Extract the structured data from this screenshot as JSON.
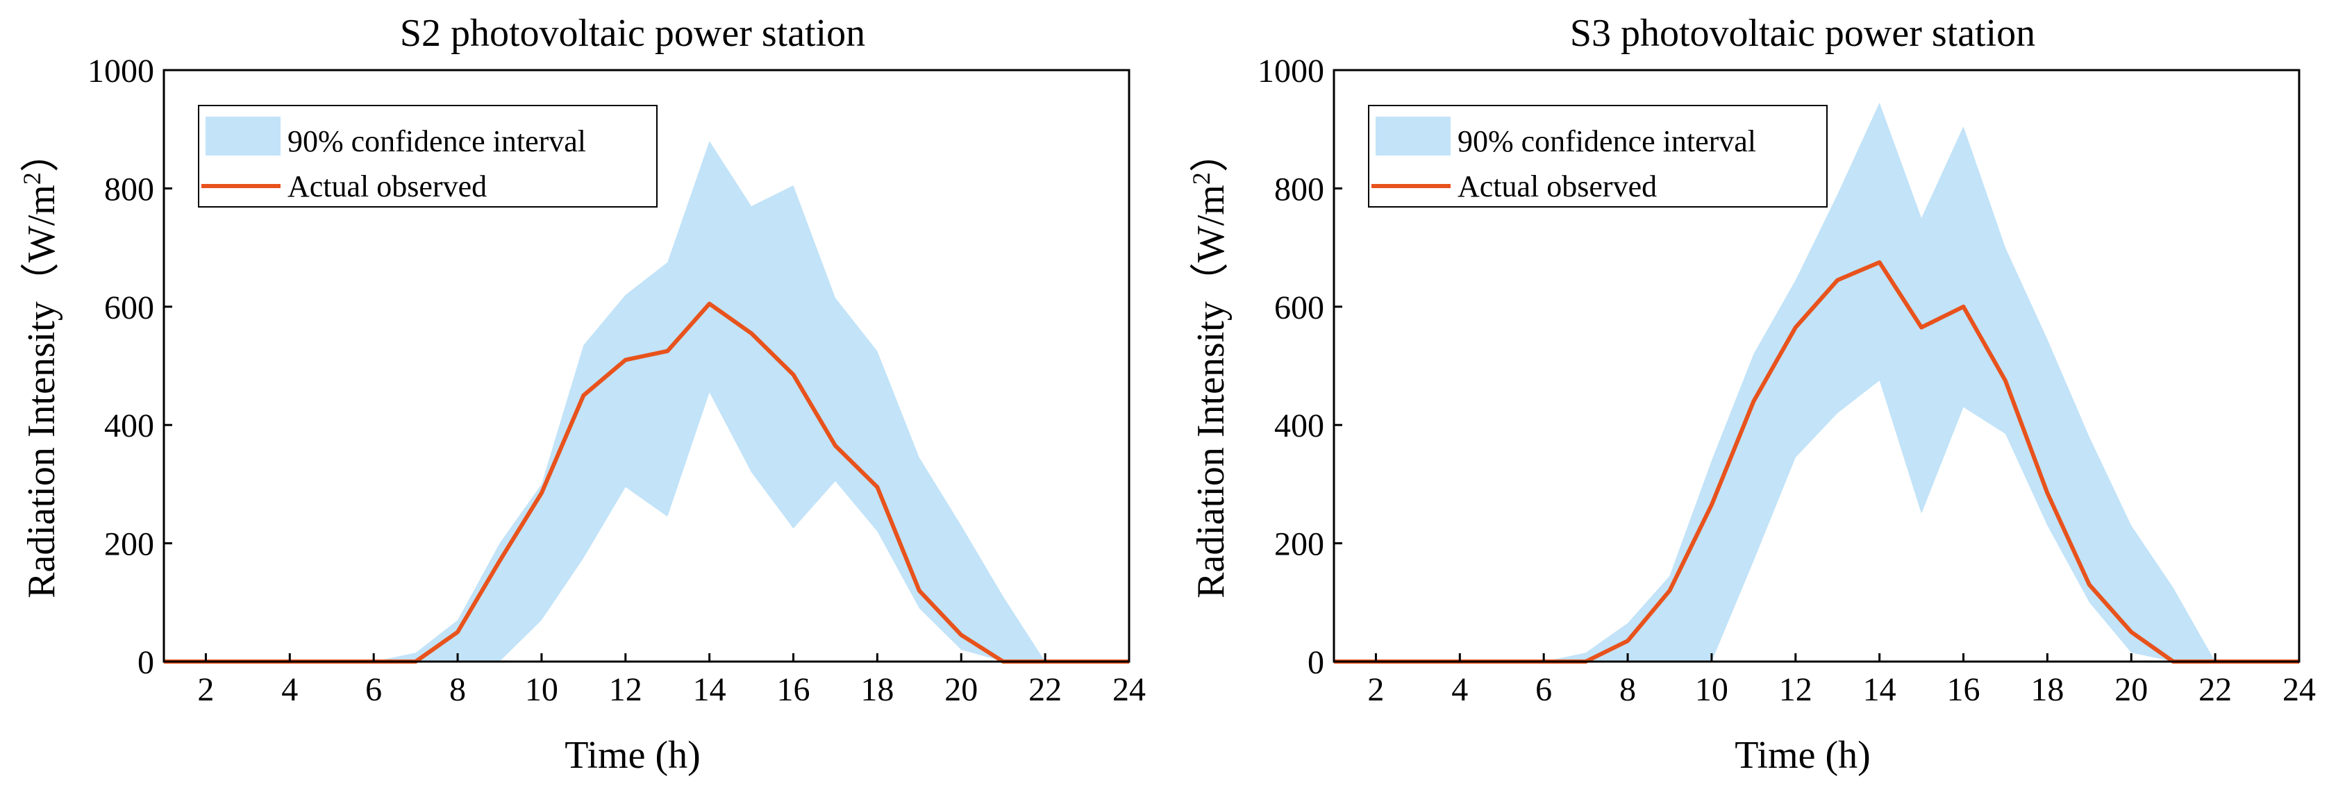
{
  "chart_data": [
    {
      "type": "area",
      "title": "S2 photovoltaic power station",
      "xlabel": "Time (h)",
      "ylabel": "Radiation Intensity（W/m²）",
      "xlim": [
        1,
        24
      ],
      "ylim": [
        0,
        1000
      ],
      "xticks": [
        2,
        4,
        6,
        8,
        10,
        12,
        14,
        16,
        18,
        20,
        22,
        24
      ],
      "yticks": [
        0,
        200,
        400,
        600,
        800,
        1000
      ],
      "legend_position": "top-left",
      "x": [
        1,
        2,
        3,
        4,
        5,
        6,
        7,
        8,
        9,
        10,
        11,
        12,
        13,
        14,
        15,
        16,
        17,
        18,
        19,
        20,
        21,
        22,
        23,
        24
      ],
      "series": [
        {
          "name": "90% confidence interval",
          "kind": "band",
          "lower": [
            0,
            0,
            0,
            0,
            0,
            0,
            0,
            0,
            0,
            70,
            175,
            295,
            245,
            455,
            320,
            225,
            305,
            220,
            90,
            20,
            0,
            0,
            0,
            0
          ],
          "upper": [
            0,
            0,
            0,
            0,
            0,
            0,
            15,
            70,
            200,
            300,
            535,
            620,
            675,
            880,
            770,
            805,
            615,
            525,
            345,
            230,
            110,
            0,
            0,
            0
          ]
        },
        {
          "name": "Actual observed",
          "kind": "line",
          "values": [
            0,
            0,
            0,
            0,
            0,
            0,
            0,
            50,
            170,
            285,
            450,
            510,
            525,
            605,
            555,
            485,
            365,
            295,
            120,
            45,
            0,
            0,
            0,
            0
          ]
        }
      ]
    },
    {
      "type": "area",
      "title": "S3 photovoltaic power station",
      "xlabel": "Time (h)",
      "ylabel": "Radiation Intensity（W/m²）",
      "xlim": [
        1,
        24
      ],
      "ylim": [
        0,
        1000
      ],
      "xticks": [
        2,
        4,
        6,
        8,
        10,
        12,
        14,
        16,
        18,
        20,
        22,
        24
      ],
      "yticks": [
        0,
        200,
        400,
        600,
        800,
        1000
      ],
      "legend_position": "top-left",
      "x": [
        1,
        2,
        3,
        4,
        5,
        6,
        7,
        8,
        9,
        10,
        11,
        12,
        13,
        14,
        15,
        16,
        17,
        18,
        19,
        20,
        21,
        22,
        23,
        24
      ],
      "series": [
        {
          "name": "90% confidence interval",
          "kind": "band",
          "lower": [
            0,
            0,
            0,
            0,
            0,
            0,
            0,
            0,
            0,
            0,
            170,
            345,
            420,
            475,
            250,
            430,
            385,
            230,
            100,
            15,
            0,
            0,
            0,
            0
          ],
          "upper": [
            0,
            0,
            0,
            0,
            0,
            0,
            15,
            65,
            145,
            340,
            520,
            645,
            790,
            945,
            750,
            905,
            700,
            545,
            380,
            230,
            125,
            0,
            0,
            0
          ]
        },
        {
          "name": "Actual observed",
          "kind": "line",
          "values": [
            0,
            0,
            0,
            0,
            0,
            0,
            0,
            35,
            120,
            265,
            440,
            565,
            645,
            675,
            565,
            600,
            475,
            285,
            130,
            50,
            0,
            0,
            0,
            0
          ]
        }
      ]
    }
  ],
  "colors": {
    "band_fill": "#c2e3f8",
    "line_stroke": "#e8521c",
    "axis": "#000000"
  }
}
